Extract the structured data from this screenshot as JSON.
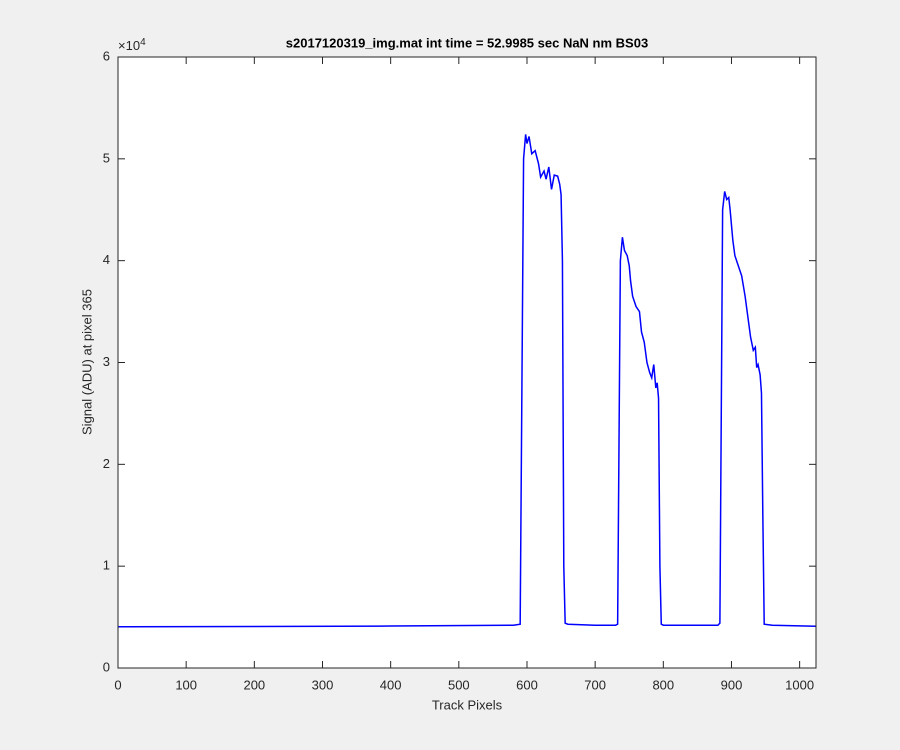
{
  "chart_data": {
    "type": "line",
    "title": "s2017120319_img.mat int time = 52.9985 sec  NaN nm BS03",
    "x_label": "Track Pixels",
    "y_label": "Signal (ADU) at pixel 365",
    "y_exponent": {
      "base": "×10",
      "power": "4"
    },
    "xlim": [
      0,
      1024
    ],
    "ylim": [
      0,
      60000
    ],
    "xticks": [
      0,
      100,
      200,
      300,
      400,
      500,
      600,
      700,
      800,
      900,
      1000
    ],
    "yticks": [
      0,
      {
        "value": 10000,
        "label": "1"
      },
      {
        "value": 20000,
        "label": "2"
      },
      {
        "value": 30000,
        "label": "3"
      },
      {
        "value": 40000,
        "label": "4"
      },
      {
        "value": 50000,
        "label": "5"
      },
      {
        "value": 60000,
        "label": "6"
      }
    ],
    "series": [
      {
        "name": "signal",
        "color": "#0000ff",
        "x": [
          0,
          200,
          400,
          580,
          590,
          595,
          598,
          600,
          603,
          607,
          612,
          617,
          620,
          625,
          628,
          632,
          636,
          640,
          645,
          648,
          650,
          652,
          654,
          656,
          660,
          700,
          730,
          733,
          737,
          740,
          743,
          747,
          750,
          752,
          755,
          760,
          765,
          768,
          772,
          776,
          780,
          783,
          786,
          789,
          791,
          793,
          795,
          797,
          800,
          880,
          883,
          887,
          890,
          893,
          896,
          898,
          902,
          905,
          910,
          915,
          920,
          925,
          928,
          932,
          935,
          937,
          939,
          942,
          944,
          946,
          948,
          960,
          1024
        ],
        "values": [
          4050,
          4080,
          4120,
          4200,
          4300,
          50000,
          52400,
          51500,
          52200,
          50500,
          50800,
          49500,
          48200,
          48800,
          48000,
          49200,
          47000,
          48400,
          48300,
          47500,
          46500,
          40000,
          10000,
          4400,
          4300,
          4200,
          4200,
          4300,
          40000,
          42300,
          41000,
          40500,
          39500,
          38000,
          36500,
          35500,
          35000,
          33000,
          32000,
          30000,
          29000,
          28500,
          29800,
          27500,
          28000,
          26500,
          10000,
          4300,
          4200,
          4200,
          4400,
          45000,
          46800,
          46000,
          46200,
          45000,
          42000,
          40500,
          39500,
          38500,
          36500,
          34000,
          32500,
          31200,
          31500,
          29500,
          29800,
          28800,
          27000,
          15000,
          4300,
          4200,
          4100
        ]
      }
    ]
  }
}
